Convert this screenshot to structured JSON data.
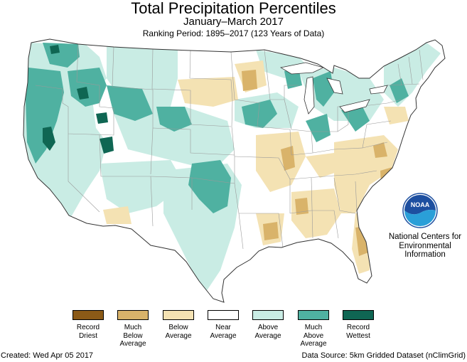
{
  "title": "Total Precipitation Percentiles",
  "subtitle": "January–March 2017",
  "ranking": "Ranking Period: 1895–2017 (123 Years of Data)",
  "logo": {
    "text": "NOAA",
    "icon": "noaa-logo-icon"
  },
  "organization": {
    "line1": "National Centers for",
    "line2": "Environmental",
    "line3": "Information"
  },
  "legend": [
    {
      "label_lines": [
        "Record",
        "Driest"
      ],
      "color": "#8b5a17"
    },
    {
      "label_lines": [
        "Much",
        "Below",
        "Average"
      ],
      "color": "#d9b36a"
    },
    {
      "label_lines": [
        "Below",
        "Average"
      ],
      "color": "#f4e2b3"
    },
    {
      "label_lines": [
        "Near",
        "Average"
      ],
      "color": "#ffffff"
    },
    {
      "label_lines": [
        "Above",
        "Average"
      ],
      "color": "#c9ece4"
    },
    {
      "label_lines": [
        "Much",
        "Above",
        "Average"
      ],
      "color": "#4fb1a1"
    },
    {
      "label_lines": [
        "Record",
        "Wettest"
      ],
      "color": "#0f6653"
    }
  ],
  "footer": {
    "created": "Created: Wed Apr 05 2017",
    "source": "Data Source: 5km Gridded Dataset (nClimGrid)"
  }
}
